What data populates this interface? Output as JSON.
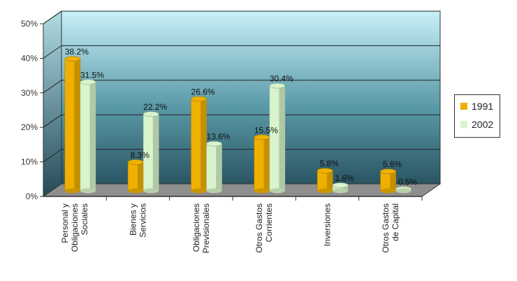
{
  "chart_data": {
    "type": "bar",
    "categories": [
      [
        "Personal y",
        "Obligaciones",
        "Sociales"
      ],
      [
        "Bienes y",
        "Servicios"
      ],
      [
        "Obligaciones",
        "Previsionales"
      ],
      [
        "Otros Gastos",
        "Corrientes"
      ],
      [
        "Inversiones"
      ],
      [
        "Otros Gastos",
        "de Capital"
      ]
    ],
    "series": [
      {
        "name": "1991",
        "values": [
          38.2,
          8.3,
          26.6,
          15.5,
          5.8,
          5.6
        ],
        "labels": [
          "38.2%",
          "8.3%",
          "26.6%",
          "15.5%",
          "5.8%",
          "5.6%"
        ],
        "color": "#f0b000"
      },
      {
        "name": "2002",
        "values": [
          31.5,
          22.2,
          13.6,
          30.4,
          1.6,
          0.5
        ],
        "labels": [
          "31.5%",
          "22.2%",
          "13.6%",
          "30.4%",
          "1.6%",
          "0.5%"
        ],
        "color": "#d8f4cc"
      }
    ],
    "y_ticks": [
      "0%",
      "10%",
      "20%",
      "30%",
      "40%",
      "50%"
    ],
    "ylim": [
      0,
      50
    ],
    "grid": true,
    "legend_position": "right",
    "colors": {
      "wall_top": "#c8f0f8",
      "wall_bottom": "#2c5a68",
      "floor": "#8a8a8a"
    }
  }
}
